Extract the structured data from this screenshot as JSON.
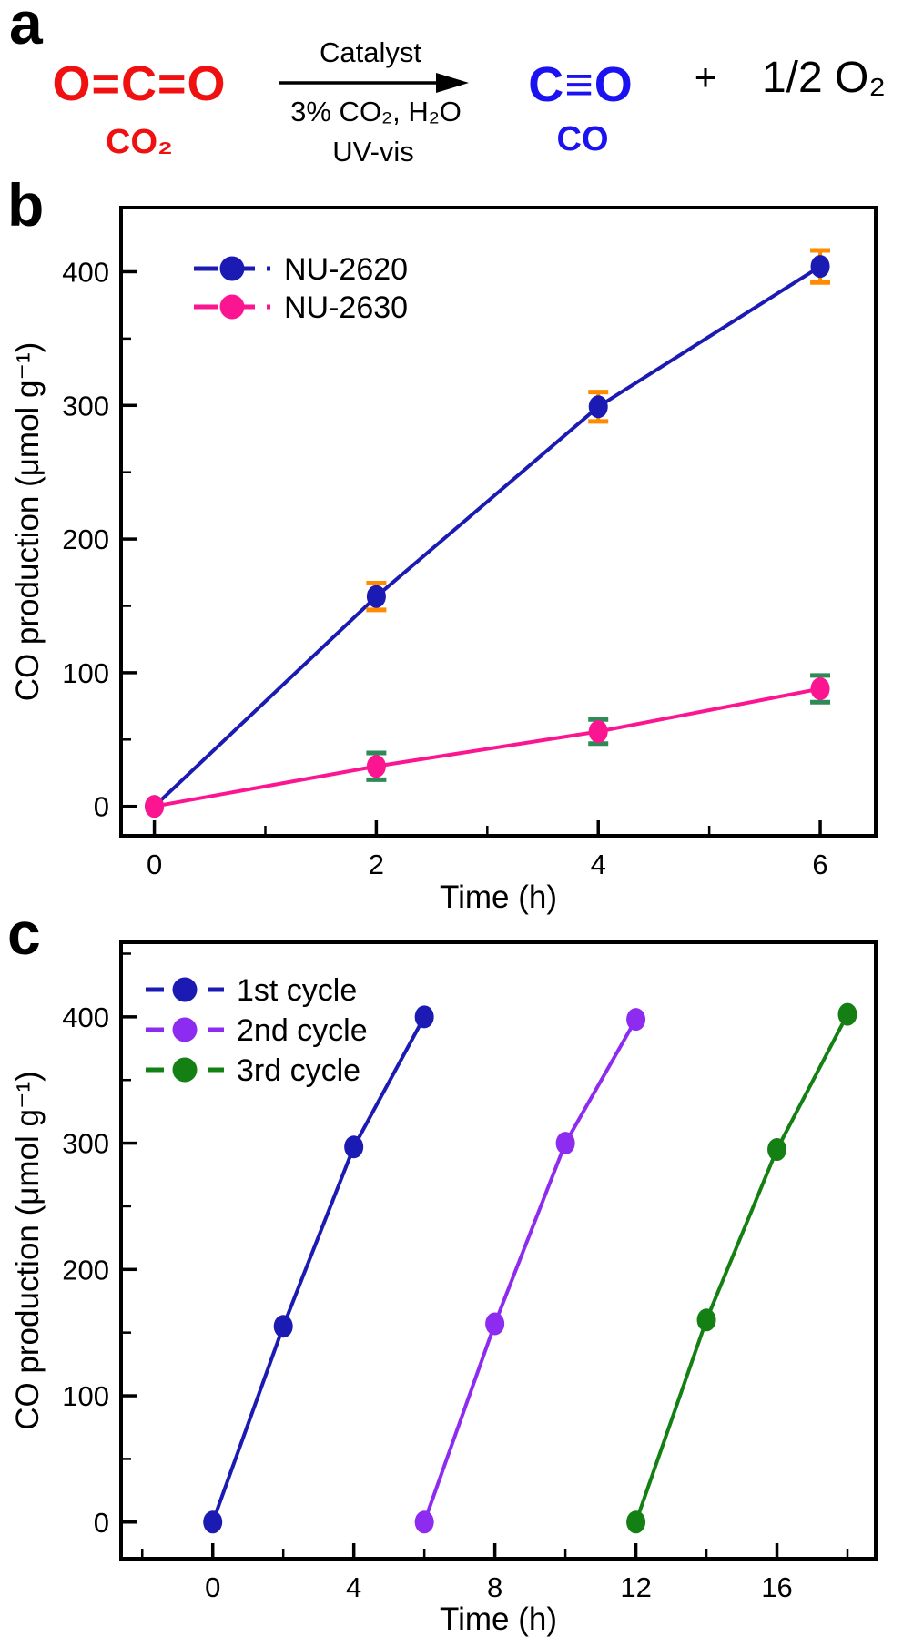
{
  "panel_a": {
    "label": "a",
    "reactant_formula": "O=C=O",
    "reactant_caption": "CO₂",
    "arrow_label_top": "Catalyst",
    "arrow_label_bottom1": "3% CO₂, H₂O",
    "arrow_label_bottom2": "UV-vis",
    "product_formula": "C≡O",
    "product_caption": "CO",
    "plus_sign": "+",
    "byproduct": "1/2 O₂",
    "colors": {
      "reactant": "#f01010",
      "product": "#1a12f0",
      "text": "#000000"
    }
  },
  "panel_b": {
    "label": "b"
  },
  "panel_c": {
    "label": "c"
  },
  "chart_data": [
    {
      "id": "chart-b",
      "type": "line",
      "panel": "b",
      "title": "",
      "xlabel": "Time (h)",
      "ylabel": "CO production (μmol g⁻¹)",
      "xlim": [
        -0.3,
        6.5
      ],
      "ylim": [
        -22,
        448
      ],
      "xticks": [
        0,
        2,
        4,
        6
      ],
      "xminorticks": [
        1,
        3,
        5
      ],
      "yticks": [
        0,
        100,
        200,
        300,
        400
      ],
      "yminorticks": [
        50,
        150,
        250,
        350
      ],
      "grid": false,
      "legend_position": "top-left",
      "series": [
        {
          "name": "NU-2620",
          "color": "#1b1bb3",
          "error_color": "#ff8c00",
          "x": [
            0,
            2,
            4,
            6
          ],
          "y": [
            0,
            157,
            299,
            404
          ],
          "yerr": [
            0,
            10,
            11,
            12
          ]
        },
        {
          "name": "NU-2630",
          "color": "#fb1591",
          "error_color": "#2e8b57",
          "x": [
            0,
            2,
            4,
            6
          ],
          "y": [
            0,
            30,
            56,
            88
          ],
          "yerr": [
            0,
            10,
            9,
            10
          ]
        }
      ]
    },
    {
      "id": "chart-c",
      "type": "line",
      "panel": "c",
      "title": "",
      "xlabel": "Time (h)",
      "ylabel": "CO production (μmol g⁻¹)",
      "xlim": [
        -2.6,
        18.8
      ],
      "ylim": [
        -29,
        459
      ],
      "xticks": [
        0,
        4,
        8,
        12,
        16
      ],
      "xminorticks": [
        -2,
        2,
        6,
        10,
        14,
        18
      ],
      "yticks": [
        0,
        100,
        200,
        300,
        400
      ],
      "yminorticks": [
        50,
        150,
        250,
        350,
        450
      ],
      "grid": false,
      "legend_position": "top-left",
      "series": [
        {
          "name": "1st cycle",
          "color": "#1b1bb3",
          "x": [
            0,
            2,
            4,
            6
          ],
          "y": [
            0,
            155,
            297,
            400
          ]
        },
        {
          "name": "2nd cycle",
          "color": "#8e2bf0",
          "x": [
            6,
            8,
            10,
            12
          ],
          "y": [
            0,
            157,
            300,
            398
          ]
        },
        {
          "name": "3rd cycle",
          "color": "#148014",
          "x": [
            12,
            14,
            16,
            18
          ],
          "y": [
            0,
            160,
            295,
            402
          ]
        }
      ]
    }
  ]
}
